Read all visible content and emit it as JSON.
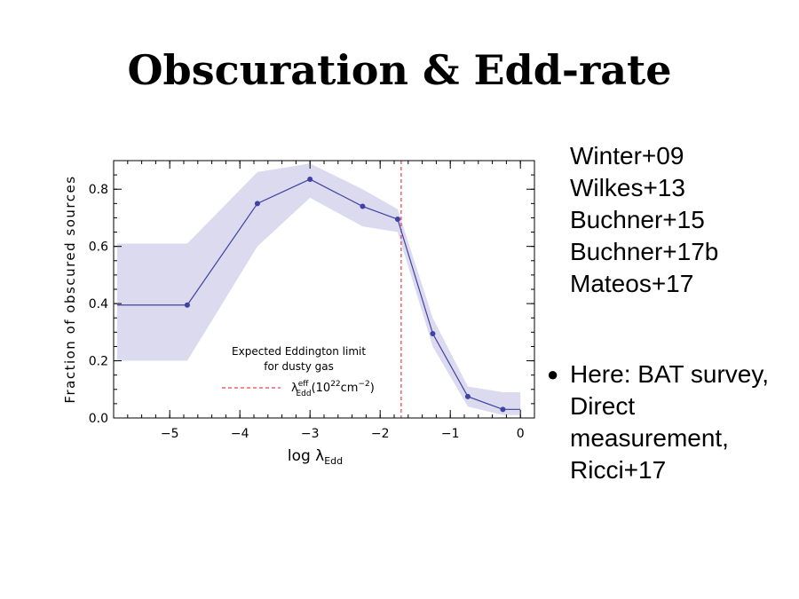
{
  "slide": {
    "title": "Obscuration & Edd-rate",
    "references": [
      "Winter+09",
      "Wilkes+13",
      "Buchner+15",
      "Buchner+17b",
      "Mateos+17"
    ],
    "bullet": "Here: BAT survey, Direct measurement, Ricci+17"
  },
  "chart_data": {
    "type": "line",
    "xlabel": "log λ_Edd",
    "ylabel": "Fraction of obscured sources",
    "xlim": [
      -5.8,
      0.2
    ],
    "ylim": [
      0.0,
      0.9
    ],
    "xticks": [
      -5,
      -4,
      -3,
      -2,
      -1,
      0
    ],
    "yticks": [
      0.0,
      0.2,
      0.4,
      0.6,
      0.8
    ],
    "series": [
      {
        "x": [
          -5.75,
          -4.75,
          -3.75,
          -3.0,
          -2.25,
          -1.75,
          -1.25,
          -0.75,
          -0.25,
          0.0
        ],
        "y": [
          0.395,
          0.395,
          0.75,
          0.835,
          0.74,
          0.695,
          0.295,
          0.075,
          0.03,
          0.03
        ],
        "markers_x": [
          -4.75,
          -3.75,
          -3.0,
          -2.25,
          -1.75,
          -1.25,
          -0.75,
          -0.25
        ],
        "band_low": [
          0.2,
          0.2,
          0.6,
          0.77,
          0.67,
          0.65,
          0.25,
          0.04,
          0.01,
          0.01
        ],
        "band_high": [
          0.61,
          0.61,
          0.86,
          0.89,
          0.8,
          0.73,
          0.35,
          0.11,
          0.09,
          0.09
        ]
      }
    ],
    "vline": {
      "x": -1.7
    },
    "annotation": {
      "line1": "Expected Eddington limit",
      "line2": "for dusty gas",
      "legend_label": "λ_Edd^eff(10^22 cm^-2)"
    },
    "colors": {
      "line": "#3f41a3",
      "band": "#dcdaef",
      "vline": "#e8141b"
    },
    "grid": false
  }
}
